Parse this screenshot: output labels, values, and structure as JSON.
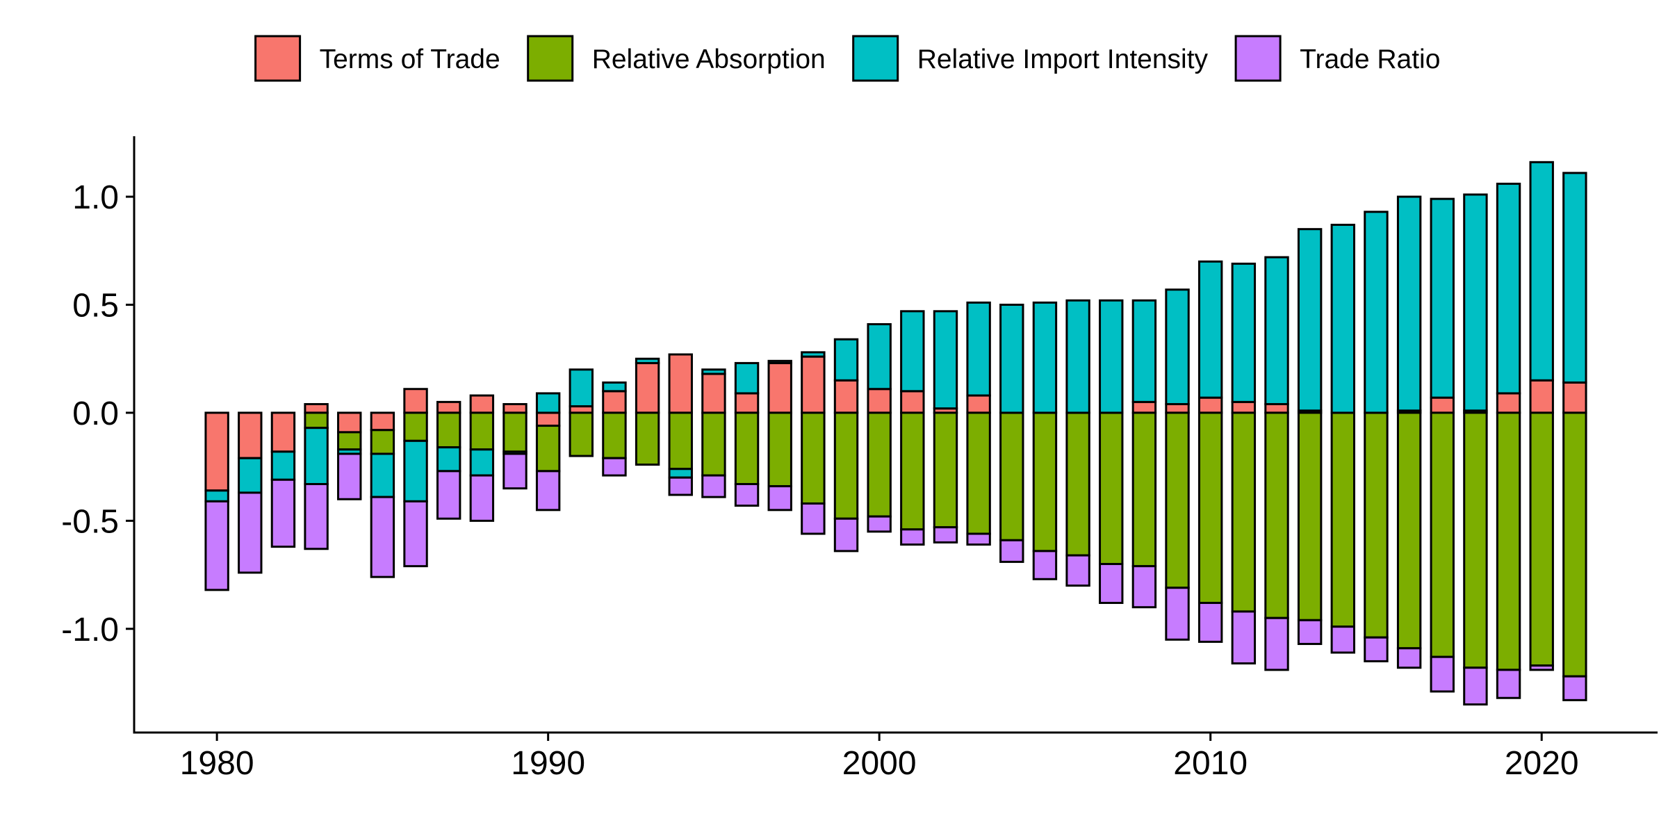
{
  "chart_data": {
    "type": "bar",
    "stacked": true,
    "diverging": true,
    "title": "",
    "xlabel": "",
    "ylabel": "",
    "ylim": [
      -1.48,
      1.28
    ],
    "xlim": [
      1977.5,
      2023.5
    ],
    "y_ticks": [
      -1.0,
      -0.5,
      0.0,
      0.5,
      1.0
    ],
    "y_tick_labels": [
      "-1.0",
      "-0.5",
      "0.0",
      "0.5",
      "1.0"
    ],
    "x_ticks": [
      1980,
      1990,
      2000,
      2010,
      2020
    ],
    "x_tick_labels": [
      "1980",
      "1990",
      "2000",
      "2010",
      "2020"
    ],
    "grid": false,
    "legend": {
      "position": "top"
    },
    "series": [
      {
        "name": "Terms of Trade",
        "color": "#F8766D",
        "x": [
          1980,
          1981,
          1982,
          1983,
          1984,
          1985,
          1986,
          1987,
          1988,
          1989,
          1990,
          1991,
          1992,
          1993,
          1994,
          1995,
          1996,
          1997,
          1998,
          1999,
          2000,
          2001,
          2002,
          2003,
          2004,
          2005,
          2006,
          2007,
          2008,
          2009,
          2010,
          2011,
          2012,
          2013,
          2014,
          2015,
          2016,
          2017,
          2018,
          2019,
          2020,
          2021
        ],
        "values": [
          -0.36,
          -0.21,
          -0.18,
          0.04,
          -0.09,
          -0.08,
          0.11,
          0.05,
          0.08,
          0.04,
          -0.06,
          0.03,
          0.1,
          0.23,
          0.27,
          0.18,
          0.09,
          0.23,
          0.26,
          0.15,
          0.11,
          0.1,
          0.02,
          0.08,
          0,
          0,
          0,
          0,
          0.05,
          0.04,
          0.07,
          0.05,
          0.04,
          0.01,
          0,
          0,
          0.01,
          0.07,
          0.01,
          0.09,
          0.15,
          0.14
        ]
      },
      {
        "name": "Relative Absorption",
        "color": "#7CAE00",
        "x": [
          1980,
          1981,
          1982,
          1983,
          1984,
          1985,
          1986,
          1987,
          1988,
          1989,
          1990,
          1991,
          1992,
          1993,
          1994,
          1995,
          1996,
          1997,
          1998,
          1999,
          2000,
          2001,
          2002,
          2003,
          2004,
          2005,
          2006,
          2007,
          2008,
          2009,
          2010,
          2011,
          2012,
          2013,
          2014,
          2015,
          2016,
          2017,
          2018,
          2019,
          2020,
          2021
        ],
        "values": [
          0,
          0,
          0,
          -0.07,
          -0.08,
          -0.11,
          -0.13,
          -0.16,
          -0.17,
          -0.18,
          -0.21,
          -0.2,
          -0.21,
          -0.24,
          -0.26,
          -0.29,
          -0.33,
          -0.34,
          -0.42,
          -0.49,
          -0.48,
          -0.54,
          -0.53,
          -0.56,
          -0.59,
          -0.64,
          -0.66,
          -0.7,
          -0.71,
          -0.81,
          -0.88,
          -0.92,
          -0.95,
          -0.96,
          -0.99,
          -1.04,
          -1.09,
          -1.13,
          -1.18,
          -1.19,
          -1.17,
          -1.22
        ]
      },
      {
        "name": "Relative Import Intensity",
        "color": "#00BFC4",
        "x": [
          1980,
          1981,
          1982,
          1983,
          1984,
          1985,
          1986,
          1987,
          1988,
          1989,
          1990,
          1991,
          1992,
          1993,
          1994,
          1995,
          1996,
          1997,
          1998,
          1999,
          2000,
          2001,
          2002,
          2003,
          2004,
          2005,
          2006,
          2007,
          2008,
          2009,
          2010,
          2011,
          2012,
          2013,
          2014,
          2015,
          2016,
          2017,
          2018,
          2019,
          2020,
          2021
        ],
        "values": [
          -0.05,
          -0.16,
          -0.13,
          -0.26,
          -0.02,
          -0.2,
          -0.28,
          -0.11,
          -0.12,
          -0.01,
          0.09,
          0.17,
          0.04,
          0.02,
          -0.04,
          0.02,
          0.14,
          0.01,
          0.02,
          0.19,
          0.3,
          0.37,
          0.45,
          0.43,
          0.5,
          0.51,
          0.52,
          0.52,
          0.47,
          0.53,
          0.63,
          0.64,
          0.68,
          0.84,
          0.87,
          0.93,
          0.99,
          0.92,
          1.0,
          0.97,
          1.01,
          0.97
        ]
      },
      {
        "name": "Trade Ratio",
        "color": "#C77CFF",
        "x": [
          1980,
          1981,
          1982,
          1983,
          1984,
          1985,
          1986,
          1987,
          1988,
          1989,
          1990,
          1991,
          1992,
          1993,
          1994,
          1995,
          1996,
          1997,
          1998,
          1999,
          2000,
          2001,
          2002,
          2003,
          2004,
          2005,
          2006,
          2007,
          2008,
          2009,
          2010,
          2011,
          2012,
          2013,
          2014,
          2015,
          2016,
          2017,
          2018,
          2019,
          2020,
          2021
        ],
        "values": [
          -0.41,
          -0.37,
          -0.31,
          -0.3,
          -0.21,
          -0.37,
          -0.3,
          -0.22,
          -0.21,
          -0.16,
          -0.18,
          0,
          -0.08,
          0,
          -0.08,
          -0.1,
          -0.1,
          -0.11,
          -0.14,
          -0.15,
          -0.07,
          -0.07,
          -0.07,
          -0.05,
          -0.1,
          -0.13,
          -0.14,
          -0.18,
          -0.19,
          -0.24,
          -0.18,
          -0.24,
          -0.24,
          -0.11,
          -0.12,
          -0.11,
          -0.09,
          -0.16,
          -0.17,
          -0.13,
          -0.02,
          -0.11
        ]
      }
    ]
  }
}
